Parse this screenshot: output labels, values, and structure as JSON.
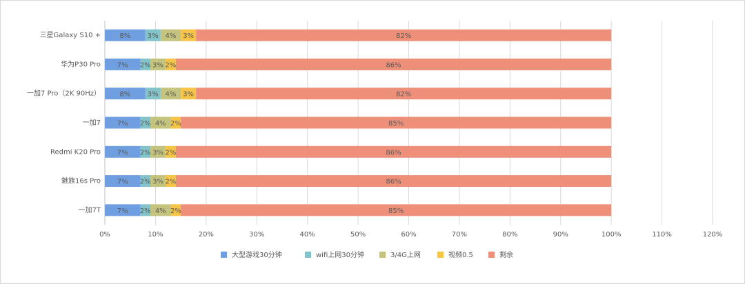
{
  "chart_data": {
    "type": "stacked-barh",
    "categories": [
      "三星Galaxy S10 +",
      "华为P30 Pro",
      "一加7 Pro（2K 90Hz）",
      "一加7",
      "Redmi K20 Pro",
      "魅族16s Pro",
      "一加7T"
    ],
    "series": [
      {
        "name": "大型游戏30分钟",
        "color": "#6f9fe0",
        "values": [
          8,
          7,
          8,
          7,
          7,
          7,
          7
        ],
        "value_labels": [
          "8%",
          "7%",
          "8%",
          "7%",
          "7%",
          "7%",
          "7%"
        ]
      },
      {
        "name": "wifi上网30分钟",
        "color": "#82c4c9",
        "values": [
          3,
          2,
          3,
          2,
          2,
          2,
          2
        ],
        "value_labels": [
          "3%",
          "2%",
          "3%",
          "2%",
          "2%",
          "2%",
          "2%"
        ]
      },
      {
        "name": "3/4G上网",
        "color": "#c5c47e",
        "values": [
          4,
          3,
          4,
          4,
          3,
          3,
          4
        ],
        "value_labels": [
          "4%",
          "3%",
          "4%",
          "4%",
          "3%",
          "3%",
          "4%"
        ]
      },
      {
        "name": "视频0.5",
        "color": "#f6c547",
        "values": [
          3,
          2,
          3,
          2,
          2,
          2,
          2
        ],
        "value_labels": [
          "3%",
          "2%",
          "3%",
          "2%",
          "2%",
          "2%",
          "2%"
        ]
      },
      {
        "name": "剩余",
        "color": "#ee9079",
        "values": [
          82,
          86,
          82,
          85,
          86,
          86,
          85
        ],
        "value_labels": [
          "82%",
          "86%",
          "82%",
          "85%",
          "86%",
          "86%",
          "85%"
        ]
      }
    ],
    "xlim": [
      0,
      120
    ],
    "xticks": [
      {
        "value": 0,
        "label": "0%"
      },
      {
        "value": 10,
        "label": "10%"
      },
      {
        "value": 20,
        "label": "20%"
      },
      {
        "value": 30,
        "label": "30%"
      },
      {
        "value": 40,
        "label": "40%"
      },
      {
        "value": 50,
        "label": "50%"
      },
      {
        "value": 60,
        "label": "60%"
      },
      {
        "value": 70,
        "label": "70%"
      },
      {
        "value": 80,
        "label": "80%"
      },
      {
        "value": 90,
        "label": "90%"
      },
      {
        "value": 100,
        "label": "100%"
      },
      {
        "value": 110,
        "label": "110%"
      },
      {
        "value": 120,
        "label": "120%"
      }
    ],
    "grid": true,
    "legend": "bottom"
  }
}
